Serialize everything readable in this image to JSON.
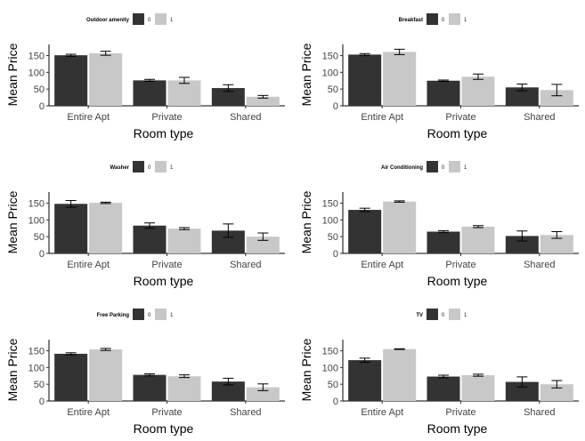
{
  "colors": {
    "level0": "#333333",
    "level1": "#c8c8c8",
    "axis": "#000000",
    "errorbar": "#000000"
  },
  "chart_data": [
    {
      "type": "bar",
      "legend_title": "Outdoor amenity",
      "legend_labels": [
        "0",
        "1"
      ],
      "legend_position": "top",
      "categories": [
        "Entire Apt",
        "Private",
        "Shared"
      ],
      "xlabel": "Room type",
      "ylabel": "Mean Price",
      "ylim": [
        0,
        170
      ],
      "yticks": [
        0,
        50,
        100,
        150
      ],
      "series": [
        {
          "name": "0",
          "values": [
            151,
            76,
            53
          ],
          "errors": [
            3,
            3,
            10
          ]
        },
        {
          "name": "1",
          "values": [
            157,
            76,
            27
          ],
          "errors": [
            6,
            9,
            4
          ]
        }
      ]
    },
    {
      "type": "bar",
      "legend_title": "Breakfast",
      "legend_labels": [
        "0",
        "1"
      ],
      "legend_position": "top",
      "categories": [
        "Entire Apt",
        "Private",
        "Shared"
      ],
      "xlabel": "Room type",
      "ylabel": "Mean Price",
      "ylim": [
        0,
        170
      ],
      "yticks": [
        0,
        50,
        100,
        150
      ],
      "series": [
        {
          "name": "0",
          "values": [
            153,
            75,
            55
          ],
          "errors": [
            3,
            2,
            10
          ]
        },
        {
          "name": "1",
          "values": [
            161,
            87,
            47
          ],
          "errors": [
            8,
            8,
            17
          ]
        }
      ]
    },
    {
      "type": "bar",
      "legend_title": "Washer",
      "legend_labels": [
        "0",
        "1"
      ],
      "legend_position": "top",
      "categories": [
        "Entire Apt",
        "Private",
        "Shared"
      ],
      "xlabel": "Room type",
      "ylabel": "Mean Price",
      "ylim": [
        0,
        170
      ],
      "yticks": [
        0,
        50,
        100,
        150
      ],
      "series": [
        {
          "name": "0",
          "values": [
            148,
            83,
            68
          ],
          "errors": [
            10,
            8,
            20
          ]
        },
        {
          "name": "1",
          "values": [
            151,
            74,
            50
          ],
          "errors": [
            2,
            3,
            11
          ]
        }
      ]
    },
    {
      "type": "bar",
      "legend_title": "Air Conditioning",
      "legend_labels": [
        "0",
        "1"
      ],
      "legend_position": "top",
      "categories": [
        "Entire Apt",
        "Private",
        "Shared"
      ],
      "xlabel": "Room type",
      "ylabel": "Mean Price",
      "ylim": [
        0,
        170
      ],
      "yticks": [
        0,
        50,
        100,
        150
      ],
      "series": [
        {
          "name": "0",
          "values": [
            130,
            65,
            52
          ],
          "errors": [
            5,
            3,
            15
          ]
        },
        {
          "name": "1",
          "values": [
            155,
            80,
            55
          ],
          "errors": [
            2,
            3,
            10
          ]
        }
      ]
    },
    {
      "type": "bar",
      "legend_title": "Free Parking",
      "legend_labels": [
        "0",
        "1"
      ],
      "legend_position": "top",
      "categories": [
        "Entire Apt",
        "Private",
        "Shared"
      ],
      "xlabel": "Room type",
      "ylabel": "Mean Price",
      "ylim": [
        0,
        170
      ],
      "yticks": [
        0,
        50,
        100,
        150
      ],
      "series": [
        {
          "name": "0",
          "values": [
            141,
            78,
            58
          ],
          "errors": [
            3,
            3,
            10
          ]
        },
        {
          "name": "1",
          "values": [
            154,
            74,
            41
          ],
          "errors": [
            3,
            4,
            10
          ]
        }
      ]
    },
    {
      "type": "bar",
      "legend_title": "TV",
      "legend_labels": [
        "0",
        "1"
      ],
      "legend_position": "top",
      "categories": [
        "Entire Apt",
        "Private",
        "Shared"
      ],
      "xlabel": "Room type",
      "ylabel": "Mean Price",
      "ylim": [
        0,
        170
      ],
      "yticks": [
        0,
        50,
        100,
        150
      ],
      "series": [
        {
          "name": "0",
          "values": [
            122,
            73,
            57
          ],
          "errors": [
            6,
            4,
            15
          ]
        },
        {
          "name": "1",
          "values": [
            155,
            77,
            50
          ],
          "errors": [
            1,
            3,
            11
          ]
        }
      ]
    }
  ]
}
